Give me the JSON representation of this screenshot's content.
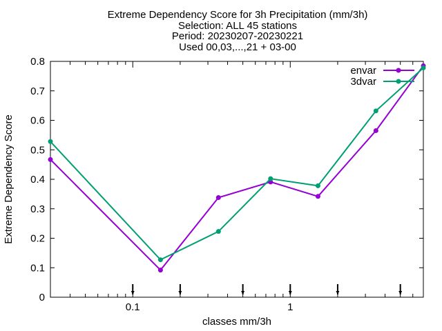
{
  "chart_data": {
    "type": "line",
    "title_lines": [
      "Extreme Dependency Score  for 3h Precipitation (mm/3h)",
      "Selection: ALL      45 stations",
      "Period: 20230207-20230221",
      "Used 00,03,...,21 + 03-00"
    ],
    "xlabel": "classes mm/3h",
    "ylabel": "Extreme Dependency Score",
    "x_scale": "log",
    "xlim": [
      0.03,
      7.0
    ],
    "ylim": [
      0,
      0.8
    ],
    "y_ticks": [
      "0",
      "0.1",
      "0.2",
      "0.3",
      "0.4",
      "0.5",
      "0.6",
      "0.7",
      "0.8"
    ],
    "x_ticks": [
      {
        "value": 0.1,
        "label": "0.1"
      },
      {
        "value": 1,
        "label": "1"
      }
    ],
    "grid": false,
    "legend_position": "top-right",
    "series": [
      {
        "name": "envar",
        "color": "#9400d3",
        "x": [
          0.03,
          0.15,
          0.35,
          0.75,
          1.5,
          3.5,
          7.0
        ],
        "y": [
          0.467,
          0.092,
          0.338,
          0.391,
          0.342,
          0.565,
          0.785
        ]
      },
      {
        "name": "3dvar",
        "color": "#009e73",
        "x": [
          0.03,
          0.15,
          0.35,
          0.75,
          1.5,
          3.5,
          7.0
        ],
        "y": [
          0.528,
          0.127,
          0.223,
          0.402,
          0.378,
          0.632,
          0.778
        ]
      }
    ],
    "threshold_markers": [
      0.1,
      0.2,
      0.5,
      1,
      2,
      5
    ]
  }
}
